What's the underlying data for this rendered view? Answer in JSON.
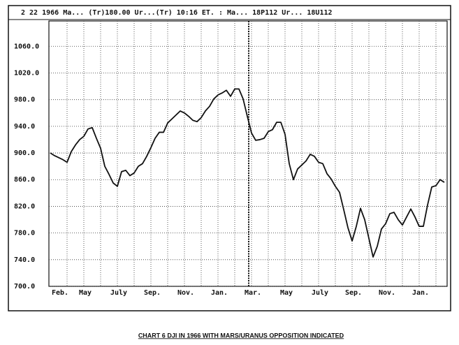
{
  "header": "2 22 1966 Ma... (Tr)180.00 Ur...(Tr)  10:16 ET. : Ma... 18P112 Ur... 18U112",
  "chart_data": {
    "type": "line",
    "caption": "CHART 6  DJI IN 1966 WITH MARS/URANUS OPPOSITION INDICATED",
    "color": "#111111",
    "grid": true,
    "ylim": [
      700,
      1098
    ],
    "yticks": [
      {
        "value": 700,
        "label": "700.0"
      },
      {
        "value": 740,
        "label": "740.0"
      },
      {
        "value": 780,
        "label": "780.0"
      },
      {
        "value": 820,
        "label": "820.0"
      },
      {
        "value": 860,
        "label": "860.0"
      },
      {
        "value": 900,
        "label": "900.0"
      },
      {
        "value": 940,
        "label": "940.0"
      },
      {
        "value": 980,
        "label": "980.0"
      },
      {
        "value": 1020,
        "label": "1020.0"
      },
      {
        "value": 1060,
        "label": "1060.0"
      }
    ],
    "categories": [
      "Feb.",
      null,
      null,
      null,
      null,
      null,
      null,
      null,
      "May",
      null,
      null,
      null,
      null,
      null,
      null,
      null,
      "July",
      null,
      null,
      null,
      null,
      null,
      null,
      null,
      "Sep.",
      null,
      null,
      null,
      null,
      null,
      null,
      null,
      "Nov.",
      null,
      null,
      null,
      null,
      null,
      null,
      null,
      "Jan.",
      null,
      null,
      null,
      null,
      null,
      null,
      null,
      "Mar.",
      null,
      null,
      null,
      null,
      null,
      null,
      null,
      "May",
      null,
      null,
      null,
      null,
      null,
      null,
      null,
      "July",
      null,
      null,
      null,
      null,
      null,
      null,
      null,
      "Sep.",
      null,
      null,
      null,
      null,
      null,
      null,
      null,
      "Nov.",
      null,
      null,
      null,
      null,
      null,
      null,
      null,
      "Jan.",
      null,
      null,
      null,
      null,
      null,
      null
    ],
    "values": [
      900,
      896,
      893,
      890,
      886,
      902,
      912,
      920,
      925,
      936,
      938,
      922,
      907,
      880,
      868,
      855,
      850,
      872,
      874,
      866,
      870,
      880,
      884,
      895,
      908,
      922,
      931,
      931,
      945,
      951,
      957,
      963,
      960,
      955,
      949,
      947,
      953,
      963,
      970,
      981,
      987,
      990,
      994,
      985,
      996,
      996,
      981,
      955,
      930,
      919,
      920,
      922,
      932,
      935,
      946,
      946,
      928,
      884,
      860,
      876,
      882,
      888,
      898,
      895,
      886,
      884,
      869,
      861,
      850,
      841,
      815,
      788,
      768,
      790,
      817,
      800,
      772,
      744,
      760,
      786,
      794,
      809,
      811,
      800,
      792,
      804,
      816,
      804,
      790,
      790,
      822,
      849,
      851,
      860,
      856
    ]
  }
}
